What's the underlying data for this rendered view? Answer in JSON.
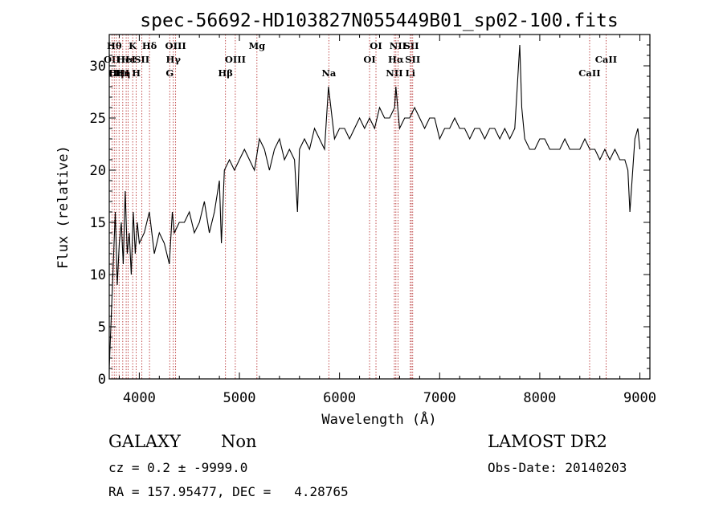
{
  "chart_data": {
    "type": "line",
    "title": "spec-56692-HD103827N055449B01_sp02-100.fits",
    "xlabel": "Wavelength (Å)",
    "ylabel": "Flux (relative)",
    "xlim": [
      3700,
      9100
    ],
    "ylim": [
      0,
      33
    ],
    "xticks": [
      4000,
      5000,
      6000,
      7000,
      8000,
      9000
    ],
    "yticks": [
      0,
      5,
      10,
      15,
      20,
      25,
      30
    ],
    "grid": false,
    "series": [
      {
        "x": [
          3700,
          3720,
          3740,
          3760,
          3780,
          3800,
          3820,
          3840,
          3860,
          3880,
          3900,
          3920,
          3940,
          3960,
          3980,
          4000,
          4050,
          4100,
          4150,
          4200,
          4250,
          4300,
          4330,
          4350,
          4400,
          4450,
          4500,
          4550,
          4600,
          4650,
          4700,
          4750,
          4800,
          4820,
          4850,
          4900,
          4950,
          5000,
          5050,
          5100,
          5150,
          5200,
          5250,
          5300,
          5350,
          5400,
          5450,
          5500,
          5550,
          5580,
          5600,
          5650,
          5700,
          5750,
          5800,
          5850,
          5890,
          5950,
          6000,
          6050,
          6100,
          6150,
          6200,
          6250,
          6300,
          6350,
          6400,
          6450,
          6500,
          6550,
          6563,
          6600,
          6650,
          6700,
          6750,
          6800,
          6850,
          6900,
          6950,
          7000,
          7050,
          7100,
          7150,
          7200,
          7250,
          7300,
          7350,
          7400,
          7450,
          7500,
          7550,
          7600,
          7650,
          7700,
          7750,
          7800,
          7820,
          7850,
          7900,
          7950,
          8000,
          8050,
          8100,
          8150,
          8200,
          8250,
          8300,
          8350,
          8400,
          8450,
          8500,
          8550,
          8600,
          8650,
          8700,
          8750,
          8800,
          8850,
          8880,
          8900,
          8950,
          8980,
          9000
        ],
        "y": [
          1,
          6,
          11,
          16,
          9,
          13,
          15,
          11,
          18,
          12,
          14,
          10,
          16,
          12,
          15,
          13,
          14,
          16,
          12,
          14,
          13,
          11,
          16,
          14,
          15,
          15,
          16,
          14,
          15,
          17,
          14,
          16,
          19,
          13,
          20,
          21,
          20,
          21,
          22,
          21,
          20,
          23,
          22,
          20,
          22,
          23,
          21,
          22,
          21,
          16,
          22,
          23,
          22,
          24,
          23,
          22,
          28,
          23,
          24,
          24,
          23,
          24,
          25,
          24,
          25,
          24,
          26,
          25,
          25,
          26,
          28,
          24,
          25,
          25,
          26,
          25,
          24,
          25,
          25,
          23,
          24,
          24,
          25,
          24,
          24,
          23,
          24,
          24,
          23,
          24,
          24,
          23,
          24,
          23,
          24,
          32,
          26,
          23,
          22,
          22,
          23,
          23,
          22,
          22,
          22,
          23,
          22,
          22,
          22,
          23,
          22,
          22,
          21,
          22,
          21,
          22,
          21,
          21,
          20,
          16,
          23,
          24,
          22
        ]
      }
    ],
    "line_markers": [
      {
        "wl": 3727,
        "label": "OII",
        "row": 1
      },
      {
        "wl": 3750,
        "label": "Hθ",
        "row": 0
      },
      {
        "wl": 3771,
        "label": "Hη",
        "row": 2
      },
      {
        "wl": 3798,
        "label": "OIII",
        "row": 2
      },
      {
        "wl": 3835,
        "label": "Hη",
        "row": 2
      },
      {
        "wl": 3869,
        "label": "HeI",
        "row": 1
      },
      {
        "wl": 3889,
        "label": "Hε",
        "row": 1
      },
      {
        "wl": 3934,
        "label": "K",
        "row": 0
      },
      {
        "wl": 3969,
        "label": "H",
        "row": 2
      },
      {
        "wl": 4026,
        "label": "SII",
        "row": 1
      },
      {
        "wl": 4102,
        "label": "Hδ",
        "row": 0
      },
      {
        "wl": 4304,
        "label": "G",
        "row": 2
      },
      {
        "wl": 4340,
        "label": "Hγ",
        "row": 1
      },
      {
        "wl": 4363,
        "label": "OIII",
        "row": 0
      },
      {
        "wl": 4861,
        "label": "Hβ",
        "row": 2
      },
      {
        "wl": 4959,
        "label": "OIII",
        "row": 1
      },
      {
        "wl": 5175,
        "label": "Mg",
        "row": 0
      },
      {
        "wl": 5893,
        "label": "Na",
        "row": 2
      },
      {
        "wl": 6300,
        "label": "OI",
        "row": 1
      },
      {
        "wl": 6364,
        "label": "OI",
        "row": 0
      },
      {
        "wl": 6548,
        "label": "NII",
        "row": 2
      },
      {
        "wl": 6563,
        "label": "Hα",
        "row": 1
      },
      {
        "wl": 6584,
        "label": "NII",
        "row": 0
      },
      {
        "wl": 6707,
        "label": "Li",
        "row": 2
      },
      {
        "wl": 6717,
        "label": "SII",
        "row": 0
      },
      {
        "wl": 6731,
        "label": "SII",
        "row": 1
      },
      {
        "wl": 8498,
        "label": "CaII",
        "row": 2
      },
      {
        "wl": 8662,
        "label": "CaII",
        "row": 1
      }
    ]
  },
  "info": {
    "class_label": "GALAXY",
    "subclass_label": "Non",
    "cz_line": "cz = 0.2 ± -9999.0",
    "radec_line": "RA = 157.95477, DEC =   4.28765",
    "survey": "LAMOST DR2",
    "obs_date": "Obs-Date: 20140203"
  }
}
